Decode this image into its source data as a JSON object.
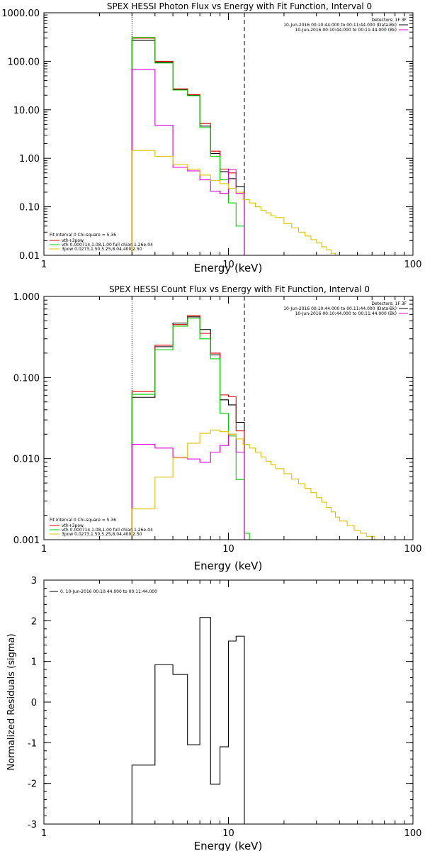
{
  "chart_data": [
    {
      "type": "line",
      "title": "SPEX HESSI Photon Flux vs Energy with Fit Function, Interval 0",
      "xlabel": "Energy (keV)",
      "ylabel": "",
      "x_scale": "log",
      "y_scale": "log",
      "xlim": [
        1,
        100
      ],
      "ylim": [
        0.01,
        1000
      ],
      "x_ticks": [
        1,
        10,
        100
      ],
      "x_tick_labels": [
        "1",
        "10",
        "100"
      ],
      "y_ticks": [
        0.01,
        0.1,
        1,
        10,
        100,
        1000
      ],
      "y_tick_labels": [
        "0.01",
        "0.10",
        "1.00",
        "10.00",
        "100.00",
        "1000.00"
      ],
      "grid": false,
      "vlines": [
        {
          "x": 3.0,
          "style": "dotted",
          "color": "#000000"
        },
        {
          "x": 12.2,
          "style": "dashed",
          "color": "#000000"
        }
      ],
      "top_legend": {
        "heading": "Detectors: 1F 3F",
        "entries": [
          {
            "text": "10-Jun-2016 00:10:44.000 to 00:11:44.000 (Data-Bk)",
            "color": "#000000"
          },
          {
            "text": "10-Jun-2016 00:10:44.000 to 00:11:44.000 (Bk)",
            "color": "#e000e0"
          }
        ]
      },
      "fit_legend": {
        "heading": "Fit Interval 0   Chi-square = 5.36",
        "entries": [
          {
            "text": "vth+3pow",
            "color": "#e00000"
          },
          {
            "text": "vth 0.000714,1.08,1.00  full chian 1.26e-04",
            "color": "#00d000"
          },
          {
            "text": "3pow 0.0273,1.50,5.25,8.04,400,2.50",
            "color": "#e0c000"
          }
        ]
      },
      "series": [
        {
          "name": "10-Jun-2016 00:10:44.000 to 00:11:44.000 (Data-Bk)",
          "color": "#000000",
          "edges": [
            3.0,
            4.0,
            5.0,
            6.0,
            7.0,
            8.0,
            9.0,
            10.0,
            11.0,
            12.2
          ],
          "values": [
            270,
            95,
            26,
            20,
            4.6,
            1.25,
            0.53,
            0.38,
            0.26
          ]
        },
        {
          "name": "vth+3pow",
          "color": "#e00000",
          "edges": [
            3.0,
            4.0,
            5.0,
            6.0,
            7.0,
            8.0,
            9.0,
            10.0,
            11.0,
            12.2
          ],
          "values": [
            300,
            100,
            27,
            20.5,
            5.2,
            1.4,
            0.6,
            0.5,
            0.2
          ]
        },
        {
          "name": "vth",
          "color": "#00d000",
          "edges": [
            3.0,
            4.0,
            5.0,
            6.0,
            7.0,
            8.0,
            9.0,
            10.0,
            11.0,
            12.2
          ],
          "values": [
            310,
            92,
            25.5,
            19.5,
            4.3,
            1.1,
            0.36,
            0.12,
            0.04
          ]
        },
        {
          "name": "10-Jun-2016 00:10:44.000 to 00:11:44.000 (Bk)",
          "color": "#e000e0",
          "edges": [
            3.0,
            4.0,
            5.0,
            6.0,
            7.0,
            8.0,
            9.0,
            10.0,
            11.0,
            12.2
          ],
          "values": [
            68,
            4.8,
            0.65,
            0.55,
            0.36,
            0.21,
            0.19,
            0.58,
            0.19
          ]
        },
        {
          "name": "3pow",
          "color": "#e0c000",
          "edges": [
            3.0,
            4.0,
            5.0,
            6.0,
            7.0,
            8.0,
            9.0,
            10.0,
            11.0,
            12.0,
            13.0,
            14.0,
            15.0,
            16.0,
            17.0,
            18.0,
            20.0,
            22.0,
            24.0,
            26.0,
            28.0,
            30.0,
            32.0,
            34.0,
            36.0,
            38.0,
            40.0,
            44.0
          ],
          "values": [
            1.45,
            1.1,
            0.75,
            0.6,
            0.45,
            0.35,
            0.3,
            0.24,
            0.2,
            0.14,
            0.12,
            0.1,
            0.085,
            0.075,
            0.065,
            0.06,
            0.045,
            0.037,
            0.03,
            0.025,
            0.021,
            0.018,
            0.015,
            0.013,
            0.011,
            0.0095,
            0.008
          ]
        }
      ]
    },
    {
      "type": "line",
      "title": "SPEX HESSI Count Flux vs Energy with Fit Function, Interval 0",
      "xlabel": "Energy (keV)",
      "ylabel": "",
      "x_scale": "log",
      "y_scale": "log",
      "xlim": [
        1,
        100
      ],
      "ylim": [
        0.001,
        1
      ],
      "x_ticks": [
        1,
        10,
        100
      ],
      "x_tick_labels": [
        "1",
        "10",
        "100"
      ],
      "y_ticks": [
        0.001,
        0.01,
        0.1,
        1
      ],
      "y_tick_labels": [
        "0.001",
        "0.010",
        "0.100",
        "1.000"
      ],
      "grid": false,
      "vlines": [
        {
          "x": 3.0,
          "style": "dotted",
          "color": "#000000"
        },
        {
          "x": 12.2,
          "style": "dashed",
          "color": "#000000"
        }
      ],
      "top_legend": {
        "heading": "Detectors: 1F 3F",
        "entries": [
          {
            "text": "10-Jun-2016 00:10:44.000 to 00:11:44.000 (Data-Bk)",
            "color": "#000000"
          },
          {
            "text": "10-Jun-2016 00:10:44.000 to 00:11:44.000 (Bk)",
            "color": "#e000e0"
          }
        ]
      },
      "fit_legend": {
        "heading": "Fit Interval 0   Chi-square = 5.36",
        "entries": [
          {
            "text": "vth+3pow",
            "color": "#e00000"
          },
          {
            "text": "vth 0.000714,1.08,1.00  full chian 1.26e-04",
            "color": "#00d000"
          },
          {
            "text": "3pow 0.0273,1.50,5.25,8.04,400,2.50",
            "color": "#e0c000"
          }
        ]
      },
      "series": [
        {
          "name": "10-Jun-2016 00:10:44.000 to 00:11:44.000 (Data-Bk)",
          "color": "#000000",
          "edges": [
            3.0,
            4.0,
            5.0,
            6.0,
            7.0,
            8.0,
            9.0,
            10.0,
            11.0,
            12.2
          ],
          "values": [
            0.057,
            0.24,
            0.47,
            0.56,
            0.39,
            0.19,
            0.053,
            0.046,
            0.028
          ]
        },
        {
          "name": "vth+3pow",
          "color": "#e00000",
          "edges": [
            3.0,
            4.0,
            5.0,
            6.0,
            7.0,
            8.0,
            9.0,
            10.0,
            11.0,
            12.2
          ],
          "values": [
            0.067,
            0.25,
            0.45,
            0.58,
            0.35,
            0.2,
            0.061,
            0.058,
            0.022
          ]
        },
        {
          "name": "vth",
          "color": "#00d000",
          "edges": [
            3.0,
            4.0,
            5.0,
            6.0,
            7.0,
            8.0,
            9.0,
            10.0,
            11.0,
            12.2,
            13.0
          ],
          "values": [
            0.062,
            0.22,
            0.43,
            0.54,
            0.3,
            0.17,
            0.036,
            0.019,
            0.0055,
            0.0012
          ]
        },
        {
          "name": "10-Jun-2016 00:10:44.000 to 00:11:44.000 (Bk)",
          "color": "#e000e0",
          "edges": [
            3.0,
            4.0,
            5.0,
            6.0,
            7.0,
            8.0,
            9.0,
            10.0,
            11.0,
            12.2
          ],
          "values": [
            0.015,
            0.0135,
            0.0103,
            0.0099,
            0.009,
            0.012,
            0.0145,
            0.02,
            0.012
          ]
        },
        {
          "name": "3pow",
          "color": "#e0c000",
          "edges": [
            3.0,
            4.0,
            5.0,
            6.0,
            7.0,
            8.0,
            9.0,
            10.0,
            11.0,
            12.0,
            13.0,
            14.0,
            15.0,
            16.0,
            17.0,
            18.0,
            20.0,
            22.0,
            24.0,
            26.0,
            28.0,
            30.0,
            32.0,
            34.0,
            36.0,
            38.0,
            40.0,
            44.0,
            48.0,
            52.0,
            56.0,
            62.0
          ],
          "values": [
            0.0024,
            0.0059,
            0.0102,
            0.0155,
            0.0205,
            0.0225,
            0.0215,
            0.02,
            0.0175,
            0.015,
            0.0135,
            0.012,
            0.0105,
            0.0093,
            0.0084,
            0.0075,
            0.0065,
            0.0056,
            0.0049,
            0.0043,
            0.0038,
            0.0033,
            0.0029,
            0.0025,
            0.0022,
            0.0019,
            0.0017,
            0.0015,
            0.0013,
            0.0012,
            0.0011
          ]
        }
      ]
    },
    {
      "type": "line",
      "title": "",
      "xlabel": "Energy (keV)",
      "ylabel": "Normalized Residuals (sigma)",
      "x_scale": "log",
      "y_scale": "linear",
      "xlim": [
        1,
        100
      ],
      "ylim": [
        -3,
        3
      ],
      "x_ticks": [
        1,
        10,
        100
      ],
      "x_tick_labels": [
        "1",
        "10",
        "100"
      ],
      "y_ticks": [
        -3,
        -2,
        -1,
        0,
        1,
        2,
        3
      ],
      "y_tick_labels": [
        "-3",
        "-2",
        "-1",
        "0",
        "1",
        "2",
        "3"
      ],
      "grid": false,
      "legend_position": "top-left",
      "series": [
        {
          "name": "0. 10-Jun-2016 00:10:44.000 to 00:11:44.000",
          "color": "#000000",
          "edges": [
            3.0,
            4.0,
            5.0,
            6.0,
            7.0,
            8.0,
            9.0,
            10.0,
            11.0,
            12.2
          ],
          "values": [
            -1.55,
            0.92,
            0.68,
            -1.05,
            2.08,
            -2.02,
            -1.1,
            1.5,
            1.62
          ]
        }
      ]
    }
  ]
}
